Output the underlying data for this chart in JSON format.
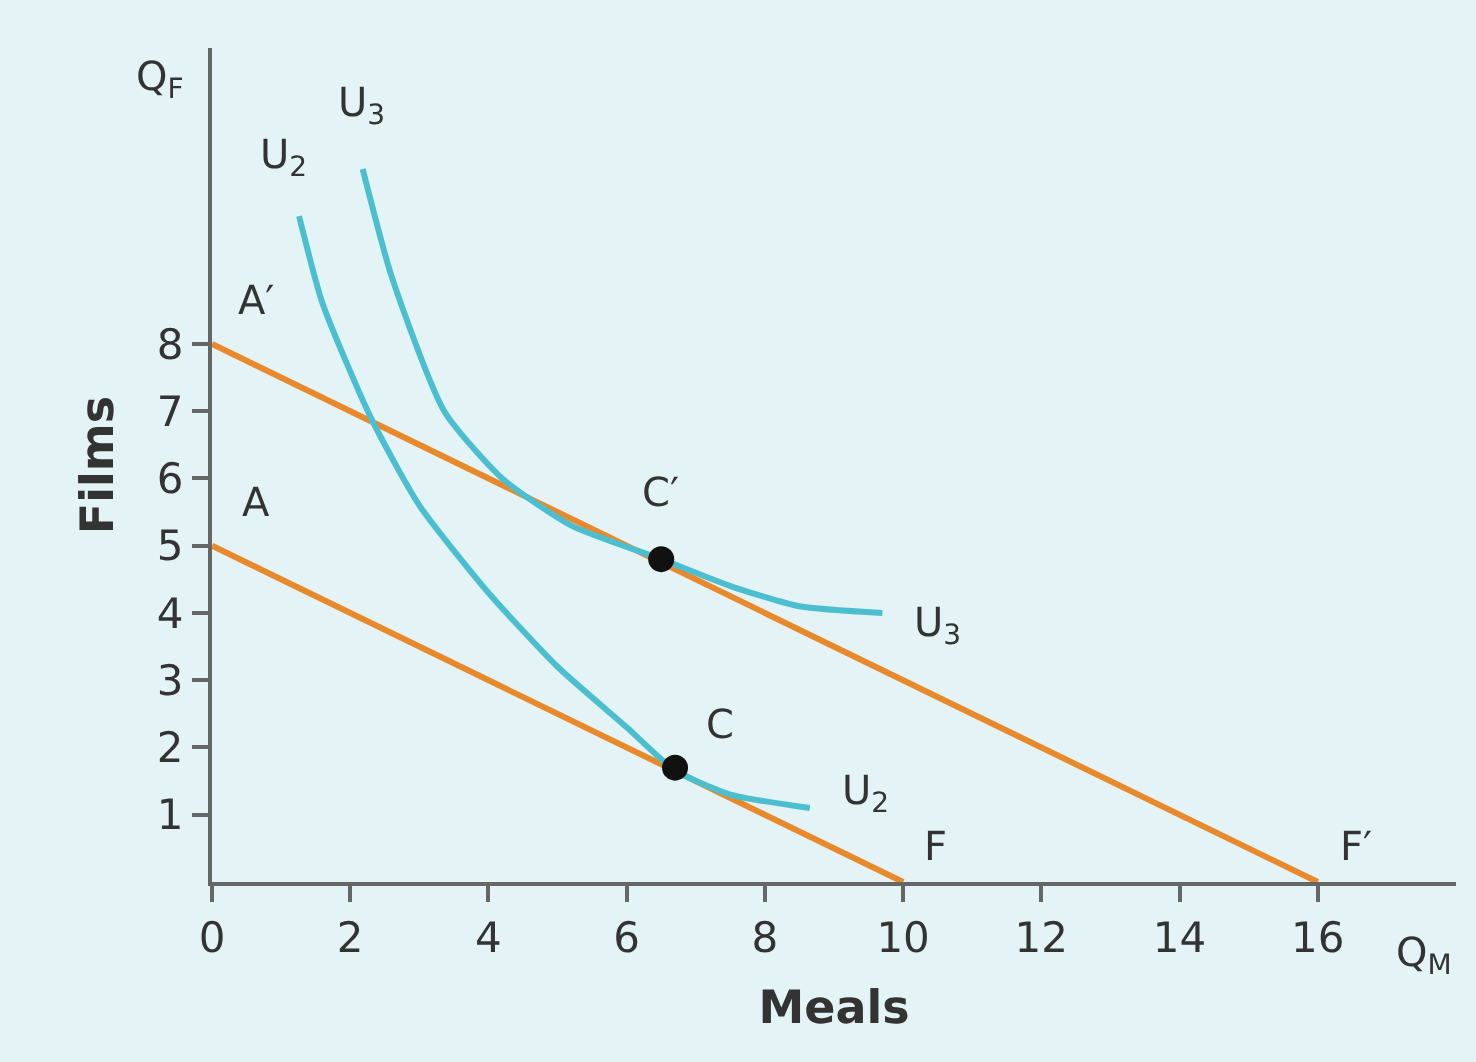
{
  "chart_data": {
    "type": "line",
    "xlabel": "Meals",
    "ylabel": "Films",
    "series": [
      {
        "color": "#e8892b",
        "x": [
          0,
          10
        ],
        "values": [
          5,
          0
        ]
      },
      {
        "color": "#e8892b",
        "x": [
          0,
          16
        ],
        "values": [
          8,
          0
        ]
      },
      {
        "color": "#4bbfcf",
        "x": [
          1.26,
          1.6,
          2.3,
          3.0,
          4.0,
          5.0,
          6.0,
          6.7,
          7.5,
          8.65
        ],
        "values": [
          9.9,
          8.6,
          6.9,
          5.6,
          4.3,
          3.2,
          2.3,
          1.66,
          1.3,
          1.1
        ]
      },
      {
        "color": "#4bbfcf",
        "x": [
          2.18,
          2.6,
          3.36,
          4.2,
          5.2,
          6.5,
          7.5,
          8.5,
          9.7
        ],
        "values": [
          10.6,
          9.0,
          7.0,
          6.0,
          5.3,
          4.8,
          4.4,
          4.1,
          4.0
        ]
      },
      {
        "type": "scatter",
        "color": "#111111",
        "marker": "circle",
        "x": [
          6.7,
          6.5
        ],
        "values": [
          1.7,
          4.8
        ]
      }
    ],
    "annotations": [
      {
        "text": "A",
        "x": 0,
        "y": 5
      },
      {
        "text": "A′",
        "x": 0,
        "y": 8
      },
      {
        "text": "F",
        "x": 10,
        "y": 0
      },
      {
        "text": "F′",
        "x": 16,
        "y": 0
      },
      {
        "text": "C",
        "x": 6.7,
        "y": 1.7
      },
      {
        "text": "C′",
        "x": 6.5,
        "y": 4.8
      },
      {
        "text": "U$_{2}$",
        "x": 1.26,
        "y": 9.9
      },
      {
        "text": "U$_{3}$",
        "x": 2.18,
        "y": 10.6
      },
      {
        "text": "U$_{2}$",
        "x": 8.65,
        "y": 1.1
      },
      {
        "text": "U$_{3}$",
        "x": 9.7,
        "y": 4.0
      },
      "Q$_{F}$",
      "Q$_{M}$"
    ],
    "xlim": [
      0,
      18
    ],
    "ylim": [
      0,
      12.4
    ],
    "xticks": [
      0,
      2,
      4,
      6,
      8,
      10,
      12,
      14,
      16
    ],
    "yticks": [
      1,
      2,
      3,
      4,
      5,
      6,
      7,
      8
    ],
    "grid": false,
    "marker": "none",
    "line_style": "solid"
  }
}
